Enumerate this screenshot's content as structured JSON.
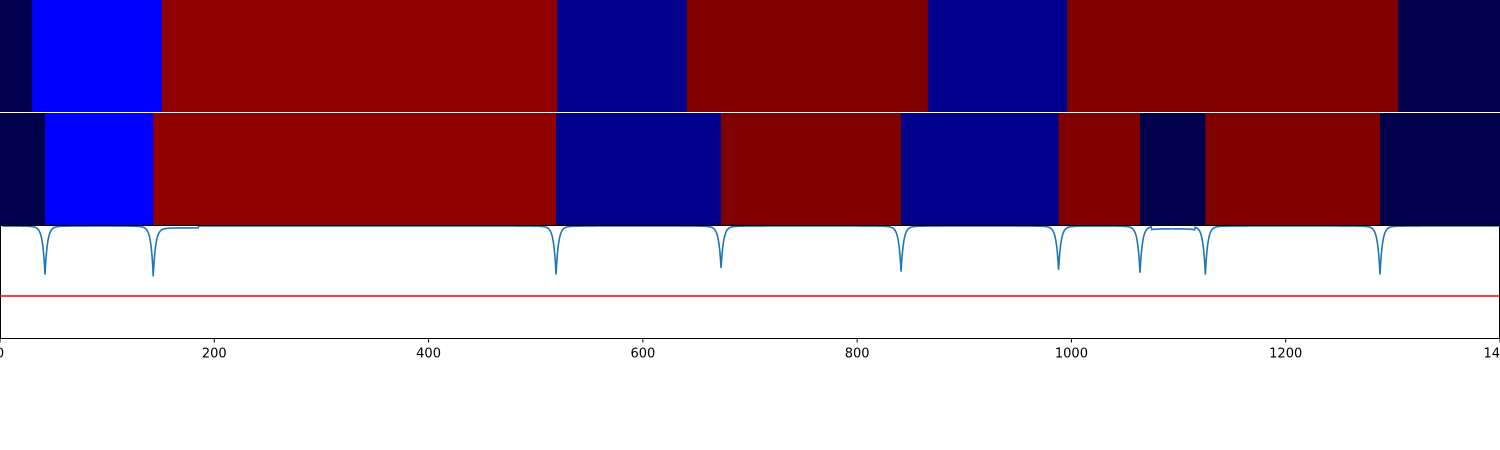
{
  "chart_data": [
    {
      "type": "heatmap",
      "panel": "top-segmentation-band",
      "x_range": [
        0,
        1400
      ],
      "segments": [
        {
          "start": 0,
          "end": 30,
          "color": "#00004c"
        },
        {
          "start": 30,
          "end": 151,
          "color": "#0000ff"
        },
        {
          "start": 151,
          "end": 520,
          "color": "#910000"
        },
        {
          "start": 520,
          "end": 641,
          "color": "#00008c"
        },
        {
          "start": 641,
          "end": 866,
          "color": "#800000"
        },
        {
          "start": 866,
          "end": 996,
          "color": "#00008c"
        },
        {
          "start": 996,
          "end": 1305,
          "color": "#800000"
        },
        {
          "start": 1305,
          "end": 1400,
          "color": "#00004c"
        }
      ]
    },
    {
      "type": "heatmap",
      "panel": "bottom-segmentation-band",
      "x_range": [
        0,
        1400
      ],
      "segments": [
        {
          "start": 0,
          "end": 42,
          "color": "#00004c"
        },
        {
          "start": 42,
          "end": 143,
          "color": "#0000ff"
        },
        {
          "start": 143,
          "end": 519,
          "color": "#910000"
        },
        {
          "start": 519,
          "end": 673,
          "color": "#00008c"
        },
        {
          "start": 673,
          "end": 841,
          "color": "#800000"
        },
        {
          "start": 841,
          "end": 988,
          "color": "#00008c"
        },
        {
          "start": 988,
          "end": 1064,
          "color": "#800000"
        },
        {
          "start": 1064,
          "end": 1125,
          "color": "#00004c"
        },
        {
          "start": 1125,
          "end": 1288,
          "color": "#800000"
        },
        {
          "start": 1288,
          "end": 1400,
          "color": "#00004c"
        }
      ]
    },
    {
      "type": "line",
      "panel": "signal-panel",
      "x_range": [
        0,
        1400
      ],
      "y_range": [
        -1.2,
        0.0
      ],
      "threshold": -0.75,
      "line_color": "#1f77b4",
      "threshold_color": "#ff0000",
      "dips": [
        {
          "x": 42,
          "depth": 0.5
        },
        {
          "x": 143,
          "depth": 0.5
        },
        {
          "x": 519,
          "depth": 0.5
        },
        {
          "x": 673,
          "depth": 0.43
        },
        {
          "x": 841,
          "depth": 0.47
        },
        {
          "x": 988,
          "depth": 0.45
        },
        {
          "x": 1064,
          "depth": 0.48
        },
        {
          "x": 1125,
          "depth": 0.5
        },
        {
          "x": 1288,
          "depth": 0.5
        }
      ],
      "plateaus": [
        {
          "start": 143,
          "end": 185,
          "level": -0.02
        },
        {
          "start": 1075,
          "end": 1115,
          "level": -0.03
        }
      ],
      "x_ticks": [
        {
          "value": 0,
          "label": "0"
        },
        {
          "value": 200,
          "label": "200"
        },
        {
          "value": 400,
          "label": "400"
        },
        {
          "value": 600,
          "label": "600"
        },
        {
          "value": 800,
          "label": "800"
        },
        {
          "value": 1000,
          "label": "1000"
        },
        {
          "value": 1200,
          "label": "1200"
        },
        {
          "value": 1400,
          "label": "1400"
        }
      ]
    }
  ]
}
